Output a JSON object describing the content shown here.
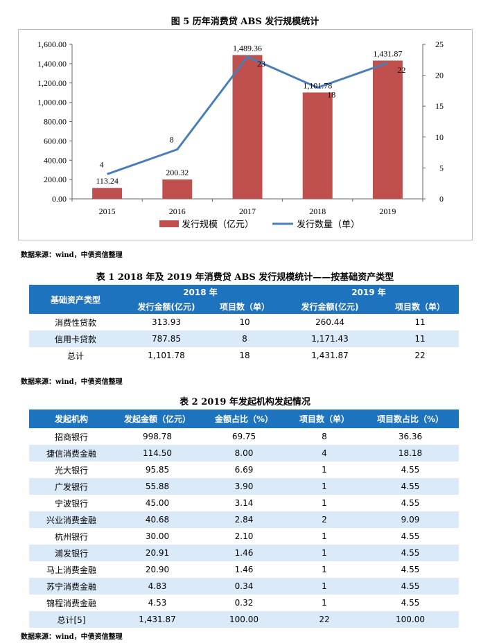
{
  "chart_title": "图 5   历年消费贷 ABS 发行规模统计",
  "chart_data": {
    "type": "bar",
    "categories": [
      "2015",
      "2016",
      "2017",
      "2018",
      "2019"
    ],
    "series": [
      {
        "name": "发行规模（亿元）",
        "type": "bar",
        "axis": "left",
        "values": [
          113.24,
          200.32,
          1489.36,
          1101.78,
          1431.87
        ],
        "labels": [
          "113.24",
          "200.32",
          "1,489.36",
          "1,101.78",
          "1,431.87"
        ],
        "color": "#c0504d"
      },
      {
        "name": "发行数量（单）",
        "type": "line",
        "axis": "right",
        "values": [
          4,
          8,
          23,
          18,
          22
        ],
        "labels": [
          "4",
          "8",
          "23",
          "18",
          "22"
        ],
        "color": "#4a7ebb"
      }
    ],
    "y_left": {
      "range": [
        0,
        1600
      ],
      "ticks": [
        "0.00",
        "200.00",
        "400.00",
        "600.00",
        "800.00",
        "1,000.00",
        "1,200.00",
        "1,400.00",
        "1,600.00"
      ]
    },
    "y_right": {
      "range": [
        0,
        25
      ],
      "ticks": [
        "0",
        "5",
        "10",
        "15",
        "20",
        "25"
      ]
    },
    "grid": false,
    "legend": "bottom"
  },
  "source1": "数据来源：wind，中债资信整理",
  "table1": {
    "title": "表 1    2018 年及 2019 年消费贷 ABS 发行规模统计——按基础资产类型",
    "head_type": "基础资产类型",
    "year1": "2018 年",
    "year2": "2019 年",
    "col_amount": "发行金额(亿元)",
    "col_count": "项目数（单）",
    "rows": [
      [
        "消费性贷款",
        "313.93",
        "10",
        "260.44",
        "11"
      ],
      [
        "信用卡贷款",
        "787.85",
        "8",
        "1,171.43",
        "11"
      ],
      [
        "总计",
        "1,101.78",
        "18",
        "1,431.87",
        "22"
      ]
    ]
  },
  "source2": "数据来源：wind，中债资信整理",
  "table2": {
    "title": "表 2    2019 年发起机构发起情况",
    "headers": [
      "发起机构",
      "发起金额（亿元）",
      "金额占比（%）",
      "项目数（单）",
      "项目数占比（%）"
    ],
    "rows": [
      [
        "招商银行",
        "998.78",
        "69.75",
        "8",
        "36.36"
      ],
      [
        "捷信消费金融",
        "114.50",
        "8.00",
        "4",
        "18.18"
      ],
      [
        "光大银行",
        "95.85",
        "6.69",
        "1",
        "4.55"
      ],
      [
        "广发银行",
        "55.88",
        "3.90",
        "1",
        "4.55"
      ],
      [
        "宁波银行",
        "45.00",
        "3.14",
        "1",
        "4.55"
      ],
      [
        "兴业消费金融",
        "40.68",
        "2.84",
        "2",
        "9.09"
      ],
      [
        "杭州银行",
        "30.00",
        "2.10",
        "1",
        "4.55"
      ],
      [
        "浦发银行",
        "20.91",
        "1.46",
        "1",
        "4.55"
      ],
      [
        "马上消费金融",
        "20.90",
        "1.46",
        "1",
        "4.55"
      ],
      [
        "苏宁消费金融",
        "4.83",
        "0.34",
        "1",
        "4.55"
      ],
      [
        "锦程消费金融",
        "4.53",
        "0.32",
        "1",
        "4.55"
      ],
      [
        "总计[5]",
        "1,431.87",
        "100.00",
        "22",
        "100.00"
      ]
    ]
  },
  "source3": "数据来源：wind，中债资信整理"
}
